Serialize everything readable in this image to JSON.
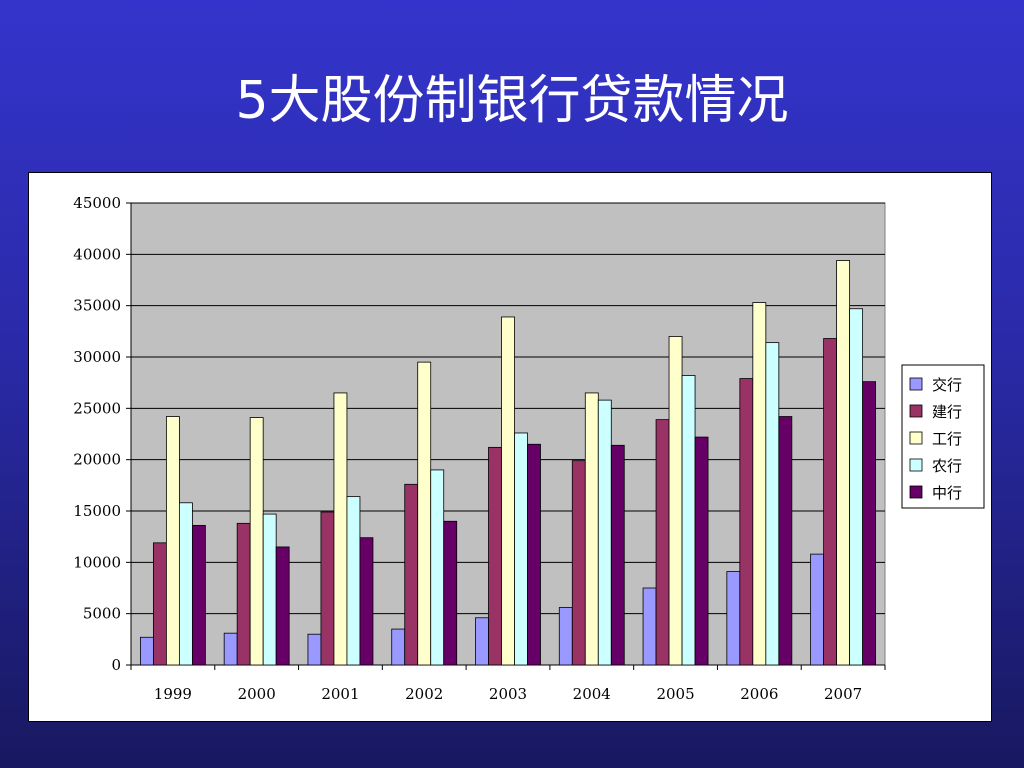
{
  "slide": {
    "title": "5大股份制银行贷款情况"
  },
  "chart_data": {
    "type": "bar",
    "title": "",
    "xlabel": "",
    "ylabel": "",
    "ylim": [
      0,
      45000
    ],
    "yticks": [
      0,
      5000,
      10000,
      15000,
      20000,
      25000,
      30000,
      35000,
      40000,
      45000
    ],
    "grid": true,
    "legend_position": "right",
    "categories": [
      "1999",
      "2000",
      "2001",
      "2002",
      "2003",
      "2004",
      "2005",
      "2006",
      "2007"
    ],
    "series": [
      {
        "name": "交行",
        "color": "#9999ff",
        "values": [
          2700,
          3100,
          3000,
          3500,
          4600,
          5600,
          7500,
          9100,
          10800
        ]
      },
      {
        "name": "建行",
        "color": "#993366",
        "values": [
          11900,
          13800,
          14900,
          17600,
          21200,
          19900,
          23900,
          27900,
          31800
        ]
      },
      {
        "name": "工行",
        "color": "#ffffcc",
        "values": [
          24200,
          24100,
          26500,
          29500,
          33900,
          26500,
          32000,
          35300,
          39400
        ]
      },
      {
        "name": "农行",
        "color": "#ccffff",
        "values": [
          15800,
          14700,
          16400,
          19000,
          22600,
          25800,
          28200,
          31400,
          34700
        ]
      },
      {
        "name": "中行",
        "color": "#660066",
        "values": [
          13600,
          11500,
          12400,
          14000,
          21500,
          21400,
          22200,
          24200,
          27600
        ]
      }
    ]
  }
}
